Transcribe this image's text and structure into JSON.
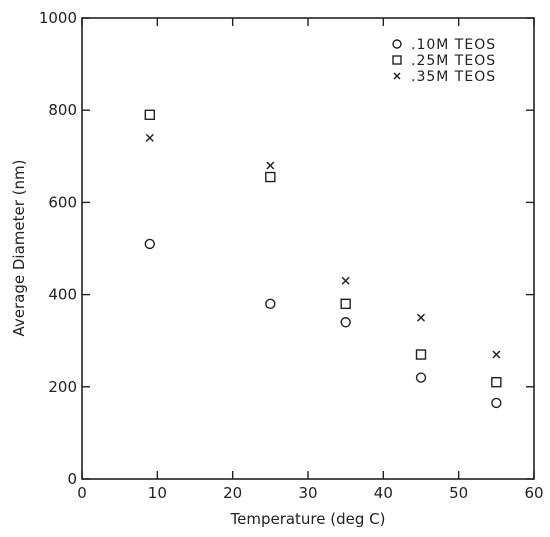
{
  "chart_data": {
    "type": "scatter",
    "title": "",
    "xlabel": "Temperature (deg C)",
    "ylabel": "Average Diameter (nm)",
    "xlim": [
      0,
      60
    ],
    "ylim": [
      0,
      1000
    ],
    "xticks": [
      "0",
      "10",
      "20",
      "30",
      "40",
      "50",
      "60"
    ],
    "yticks": [
      "0",
      "200",
      "400",
      "600",
      "800",
      "1000"
    ],
    "grid": false,
    "legend_position": "top-right",
    "series": [
      {
        "name": ".10M TEOS",
        "marker": "circle",
        "x": [
          9,
          25,
          35,
          45,
          55
        ],
        "y": [
          510,
          380,
          340,
          220,
          165
        ]
      },
      {
        "name": ".25M TEOS",
        "marker": "square",
        "x": [
          9,
          25,
          35,
          45,
          55
        ],
        "y": [
          790,
          655,
          380,
          270,
          210
        ]
      },
      {
        "name": ".35M TEOS",
        "marker": "cross",
        "x": [
          9,
          25,
          35,
          45,
          55
        ],
        "y": [
          740,
          680,
          430,
          350,
          270
        ]
      }
    ],
    "colors": {
      "ink": "#222222",
      "background": "#ffffff"
    }
  }
}
